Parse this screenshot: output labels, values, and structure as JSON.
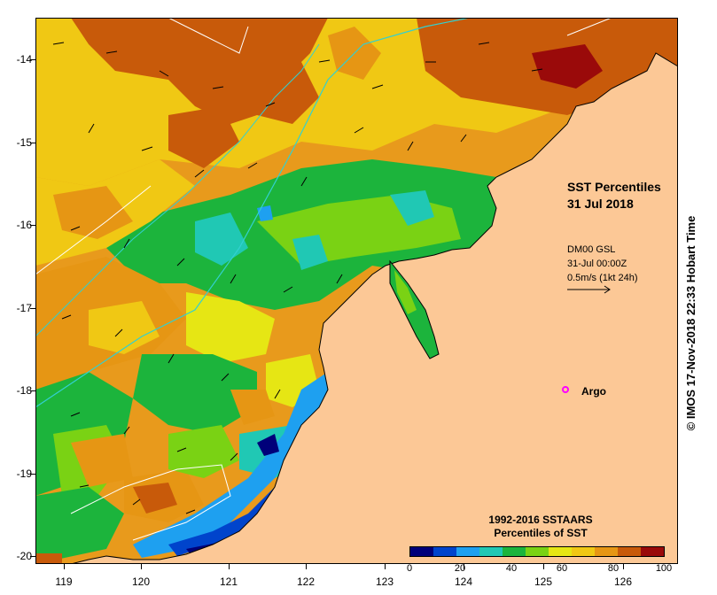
{
  "map": {
    "title_line1": "SST Percentiles",
    "title_line2": "31 Jul 2018",
    "current_source": "DM00 GSL",
    "current_time": "31-Jul 00:00Z",
    "current_scale": "0.5m/s (1kt 24h)",
    "argo_label": "Argo",
    "argo_color": "#ff00ff",
    "land_color": "#fcc896",
    "y_axis_labels": [
      "-14",
      "-15",
      "-16",
      "-17",
      "-18",
      "-19",
      "-20"
    ],
    "x_axis_labels": [
      "119",
      "120",
      "121",
      "122",
      "123",
      "124",
      "125",
      "126"
    ],
    "credit": "© IMOS 17-Nov-2018 22:33 Hobart Time"
  },
  "colorbar": {
    "title_line1": "1992-2016 SSTAARS",
    "title_line2": "Percentiles of SST",
    "tick_labels": [
      "0",
      "20",
      "40",
      "60",
      "80",
      "100"
    ],
    "colors": [
      "#00007a",
      "#0044cc",
      "#1ea0f0",
      "#20c8b4",
      "#1cb43c",
      "#7ad214",
      "#e6e614",
      "#f0c814",
      "#e69614",
      "#c85a0a",
      "#9a0a0a"
    ]
  }
}
